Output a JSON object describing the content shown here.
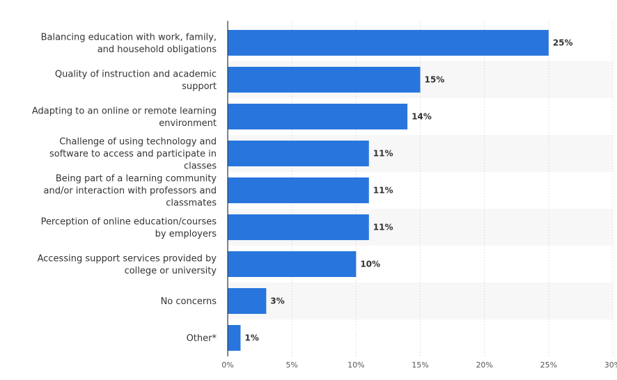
{
  "chart_data": {
    "type": "bar",
    "orientation": "horizontal",
    "categories": [
      [
        "Balancing education with work, family,",
        "and household obligations"
      ],
      [
        "Quality of instruction and academic",
        "support"
      ],
      [
        "Adapting to an online or remote learning",
        "environment"
      ],
      [
        "Challenge of using technology and",
        "software to access and participate in",
        "classes"
      ],
      [
        "Being part of a learning community",
        "and/or interaction with professors and",
        "classmates"
      ],
      [
        "Perception of online education/courses",
        "by employers"
      ],
      [
        "Accessing support services provided by",
        "college or university"
      ],
      [
        "No concerns"
      ],
      [
        "Other*"
      ]
    ],
    "values": [
      25,
      15,
      14,
      11,
      11,
      11,
      10,
      3,
      1
    ],
    "value_labels": [
      "25%",
      "15%",
      "14%",
      "11%",
      "11%",
      "11%",
      "10%",
      "3%",
      "1%"
    ],
    "xlim": [
      0,
      30
    ],
    "x_ticks": [
      0,
      5,
      10,
      15,
      20,
      25,
      30
    ],
    "x_tick_labels": [
      "0%",
      "5%",
      "10%",
      "15%",
      "20%",
      "25%",
      "30%"
    ],
    "grid": true,
    "bar_color": "#2876dd",
    "alt_row_color": "#f7f7f7",
    "title": "",
    "xlabel": "",
    "ylabel": ""
  }
}
